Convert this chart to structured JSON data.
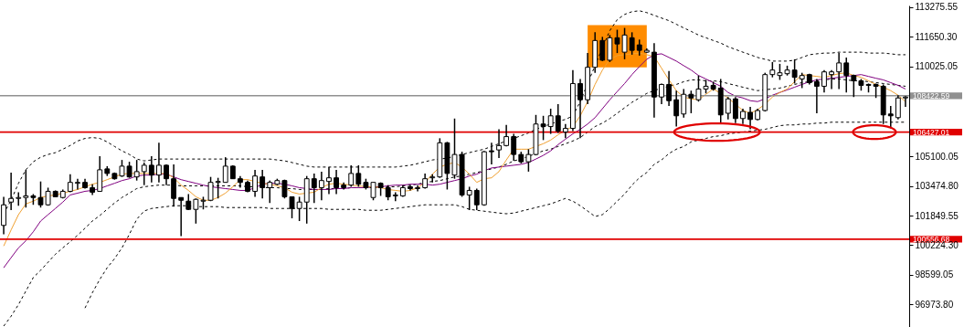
{
  "chart_data": {
    "type": "candlestick",
    "categories": [
      null,
      null,
      null,
      null,
      null,
      null,
      null,
      null,
      null,
      null,
      null,
      null,
      null,
      null,
      null,
      null,
      null,
      null,
      null,
      null,
      null,
      null,
      null,
      null,
      null,
      null,
      null,
      null,
      null,
      null,
      null,
      null,
      null,
      null,
      null,
      null,
      null,
      null,
      null,
      null,
      null,
      null,
      null,
      null,
      null,
      null,
      null,
      null,
      null,
      null,
      null,
      null,
      null,
      null,
      null,
      null,
      null,
      null,
      null,
      null,
      null,
      null,
      null,
      null,
      null,
      null,
      null,
      null,
      null,
      null,
      null,
      null,
      null,
      null,
      null,
      null,
      null,
      null,
      null,
      null,
      null,
      null,
      null,
      null,
      null,
      null,
      null,
      null,
      null,
      null,
      null,
      null,
      null,
      null,
      null,
      null,
      null,
      null,
      null,
      null,
      null,
      null,
      null,
      null,
      null,
      null,
      null,
      null,
      null,
      null,
      null,
      null,
      null,
      null,
      null,
      null,
      null,
      null,
      null,
      null,
      null,
      null,
      null
    ],
    "ohlc": [
      [
        101310,
        102880,
        100820,
        102440
      ],
      [
        102590,
        104210,
        102150,
        102790
      ],
      [
        102790,
        103130,
        102390,
        102840
      ],
      [
        102840,
        104360,
        102290,
        102930
      ],
      [
        102930,
        103030,
        102440,
        102840
      ],
      [
        102840,
        103720,
        102290,
        102440
      ],
      [
        102440,
        103380,
        102390,
        103180
      ],
      [
        103180,
        103230,
        102880,
        102880
      ],
      [
        102840,
        103280,
        102790,
        103180
      ],
      [
        103180,
        104120,
        103130,
        103670
      ],
      [
        103620,
        103870,
        103280,
        103670
      ],
      [
        103670,
        103870,
        103330,
        103380
      ],
      [
        103380,
        103570,
        102980,
        103130
      ],
      [
        103180,
        105100,
        103180,
        104360
      ],
      [
        104410,
        104560,
        104020,
        104160
      ],
      [
        104160,
        104210,
        103820,
        103870
      ],
      [
        104020,
        104900,
        103970,
        104560
      ],
      [
        104560,
        104800,
        103920,
        103970
      ],
      [
        103970,
        104900,
        103770,
        104260
      ],
      [
        104260,
        104760,
        103520,
        104610
      ],
      [
        104610,
        105100,
        103670,
        104070
      ],
      [
        104070,
        105840,
        103670,
        104610
      ],
      [
        104610,
        104660,
        103520,
        103870
      ],
      [
        103870,
        104660,
        102340,
        102790
      ],
      [
        102840,
        102840,
        100720,
        102690
      ],
      [
        102640,
        103030,
        102150,
        102190
      ],
      [
        102190,
        102790,
        101410,
        102740
      ],
      [
        102640,
        102880,
        102190,
        102690
      ],
      [
        102690,
        103970,
        102640,
        103670
      ],
      [
        103670,
        103920,
        102790,
        103720
      ],
      [
        103670,
        105050,
        103670,
        104560
      ],
      [
        104560,
        104610,
        103870,
        103870
      ],
      [
        103870,
        104020,
        103380,
        103670
      ],
      [
        103670,
        103770,
        103130,
        103180
      ],
      [
        103180,
        104360,
        102880,
        104020
      ],
      [
        103970,
        104360,
        102790,
        103380
      ],
      [
        103380,
        103770,
        102540,
        103670
      ],
      [
        103570,
        103870,
        103520,
        103770
      ],
      [
        103770,
        103820,
        102790,
        102880
      ],
      [
        102880,
        102880,
        101700,
        102240
      ],
      [
        102240,
        102880,
        101550,
        102590
      ],
      [
        102590,
        104020,
        101410,
        103870
      ],
      [
        103870,
        104160,
        102540,
        103380
      ],
      [
        103380,
        104260,
        102690,
        103770
      ],
      [
        103720,
        104510,
        103030,
        103920
      ],
      [
        103920,
        104360,
        103030,
        103380
      ],
      [
        103520,
        103670,
        103280,
        103380
      ],
      [
        103520,
        104610,
        103430,
        104160
      ],
      [
        104160,
        104610,
        103430,
        103570
      ],
      [
        103670,
        103870,
        103280,
        103380
      ],
      [
        102840,
        103670,
        102690,
        103670
      ],
      [
        103620,
        103670,
        102930,
        103380
      ],
      [
        103380,
        103520,
        102690,
        102880
      ],
      [
        102930,
        103130,
        102640,
        102980
      ],
      [
        102930,
        103520,
        102880,
        103380
      ],
      [
        103430,
        103520,
        103230,
        103330
      ],
      [
        103330,
        103520,
        103180,
        103380
      ],
      [
        103380,
        104160,
        103330,
        103870
      ],
      [
        103920,
        104120,
        103670,
        103970
      ],
      [
        103970,
        106090,
        103920,
        105840
      ],
      [
        105840,
        105890,
        103280,
        104160
      ],
      [
        104070,
        107170,
        103870,
        105200
      ],
      [
        105200,
        105350,
        102880,
        102980
      ],
      [
        102980,
        103430,
        102150,
        103230
      ],
      [
        103230,
        103330,
        102150,
        102440
      ],
      [
        102440,
        105400,
        102390,
        105350
      ],
      [
        105400,
        105840,
        104660,
        105350
      ],
      [
        105450,
        106580,
        105000,
        105690
      ],
      [
        105690,
        106820,
        105640,
        106180
      ],
      [
        106180,
        106330,
        104850,
        105200
      ],
      [
        105200,
        105350,
        104710,
        104800
      ],
      [
        104800,
        105490,
        104260,
        105200
      ],
      [
        105200,
        107370,
        105150,
        106870
      ],
      [
        106870,
        107320,
        105990,
        106730
      ],
      [
        106730,
        107710,
        106330,
        107320
      ],
      [
        107320,
        107960,
        106380,
        106480
      ],
      [
        106430,
        106870,
        106090,
        106630
      ],
      [
        106630,
        109830,
        106480,
        109090
      ],
      [
        109090,
        109340,
        106090,
        108200
      ],
      [
        108200,
        110760,
        107960,
        109980
      ],
      [
        109980,
        111900,
        109680,
        111450
      ],
      [
        111450,
        111650,
        110320,
        110370
      ],
      [
        110370,
        111750,
        110270,
        111600
      ],
      [
        111600,
        112040,
        110760,
        111260
      ],
      [
        110810,
        112140,
        110420,
        111750
      ],
      [
        111600,
        111900,
        110670,
        110910
      ],
      [
        111210,
        111500,
        110620,
        110910
      ],
      [
        110810,
        111010,
        110760,
        110910
      ],
      [
        110810,
        111310,
        107220,
        108350
      ],
      [
        108350,
        109090,
        107960,
        109040
      ],
      [
        109040,
        109780,
        107860,
        108150
      ],
      [
        108200,
        108700,
        106730,
        107320
      ],
      [
        107420,
        108790,
        107220,
        108500
      ],
      [
        108500,
        108700,
        107460,
        108300
      ],
      [
        108200,
        109530,
        108100,
        108790
      ],
      [
        108790,
        109290,
        108550,
        108940
      ],
      [
        108990,
        109190,
        108700,
        108790
      ],
      [
        108840,
        109340,
        106870,
        107370
      ],
      [
        107460,
        108350,
        107120,
        108250
      ],
      [
        108250,
        108350,
        106920,
        107170
      ],
      [
        107170,
        107710,
        106870,
        107560
      ],
      [
        107510,
        107810,
        106580,
        107120
      ],
      [
        107120,
        107710,
        107070,
        107610
      ],
      [
        107610,
        109680,
        107560,
        109580
      ],
      [
        109580,
        110270,
        109430,
        109830
      ],
      [
        109530,
        110170,
        109290,
        109680
      ],
      [
        109630,
        110070,
        109530,
        109830
      ],
      [
        109830,
        110420,
        109090,
        109430
      ],
      [
        109340,
        109680,
        108840,
        109530
      ],
      [
        109580,
        109630,
        109040,
        109140
      ],
      [
        109190,
        109340,
        107460,
        108940
      ],
      [
        108940,
        109830,
        108600,
        109730
      ],
      [
        109580,
        109830,
        108790,
        109730
      ],
      [
        109730,
        110760,
        108790,
        110220
      ],
      [
        110220,
        110520,
        108600,
        109530
      ],
      [
        109530,
        109580,
        108350,
        109240
      ],
      [
        109240,
        109340,
        108700,
        108990
      ],
      [
        109040,
        109090,
        108600,
        108990
      ],
      [
        109040,
        109090,
        108300,
        108940
      ],
      [
        108940,
        109040,
        106870,
        107370
      ],
      [
        107420,
        107860,
        106630,
        107320
      ],
      [
        107220,
        108450,
        107120,
        108300
      ],
      [
        108300,
        108400,
        107810,
        108350
      ]
    ],
    "series": [
      {
        "type": "line",
        "color": "#000000",
        "line_style": "dashed",
        "values": [
          101950,
          102690,
          103620,
          104360,
          104800,
          105050,
          105200,
          105300,
          105490,
          105690,
          105940,
          106080,
          106130,
          106080,
          105890,
          105640,
          105400,
          105200,
          104950,
          104850,
          104900,
          104950,
          104950,
          104950,
          104950,
          104950,
          104950,
          104950,
          104950,
          104950,
          104950,
          104950,
          104950,
          104950,
          104950,
          104950,
          104950,
          104900,
          104850,
          104760,
          104660,
          104560,
          104510,
          104510,
          104510,
          104510,
          104510,
          104510,
          104510,
          104510,
          104510,
          104510,
          104510,
          104510,
          104560,
          104610,
          104700,
          104800,
          104900,
          104950,
          105000,
          105100,
          105200,
          105300,
          105400,
          105490,
          105640,
          105790,
          105940,
          106080,
          106230,
          106380,
          106580,
          106730,
          106870,
          107020,
          107120,
          107320,
          108100,
          109090,
          110070,
          111060,
          111990,
          112590,
          112880,
          113030,
          113080,
          112980,
          112830,
          112680,
          112540,
          112340,
          112140,
          111950,
          111750,
          111600,
          111450,
          111310,
          111110,
          110960,
          110810,
          110670,
          110520,
          110420,
          110320,
          110320,
          110320,
          110370,
          110520,
          110670,
          110720,
          110760,
          110760,
          110810,
          110810,
          110810,
          110810,
          110760,
          110760,
          110760,
          110720,
          110670,
          110670
        ]
      },
      {
        "type": "line",
        "color": "#000000",
        "line_style": "dashed",
        "values": [
          95790,
          96330,
          96970,
          97710,
          98450,
          98850,
          99290,
          99730,
          100080,
          100420,
          100770,
          101160,
          101550,
          101850,
          102200,
          102540,
          102840,
          103080,
          103330,
          103430,
          103480,
          103520,
          103520,
          103520,
          103480,
          103480,
          103480,
          103480,
          103480,
          103480,
          103480,
          103480,
          103480,
          103430,
          103430,
          103380,
          103380,
          103380,
          103330,
          103330,
          103280,
          103280,
          103280,
          103280,
          103330,
          103330,
          103330,
          103380,
          103380,
          103380,
          103380,
          103430,
          103430,
          103430,
          103480,
          103520,
          103570,
          103670,
          103720,
          103770,
          103870,
          103970,
          104020,
          104120,
          104210,
          104310,
          104410,
          104510,
          104660,
          104850,
          104950,
          105100,
          105250,
          105400,
          105490,
          105640,
          105790,
          105940,
          106130,
          106430,
          106730,
          106920,
          107170,
          107460,
          107760,
          108060,
          108300,
          108550,
          108700,
          108840,
          108940,
          109040,
          109190,
          109290,
          109290,
          109240,
          109240,
          109190,
          109090,
          108990,
          108890,
          108790,
          108700,
          108750,
          108790,
          108840,
          108940,
          109040,
          109140,
          109190,
          109240,
          109290,
          109340,
          109340,
          109290,
          109240,
          109240,
          109190,
          109140,
          109090,
          109040,
          108990,
          108940
        ]
      },
      {
        "type": "line",
        "color": "#000000",
        "line_style": "dashed",
        "values": [
          null,
          null,
          null,
          null,
          null,
          null,
          null,
          null,
          null,
          null,
          null,
          96780,
          97620,
          98350,
          98990,
          99490,
          100080,
          100820,
          101650,
          102100,
          102240,
          102290,
          102340,
          102390,
          102390,
          102390,
          102340,
          102340,
          102340,
          102340,
          102290,
          102290,
          102290,
          102290,
          102290,
          102290,
          102240,
          102240,
          102240,
          102240,
          102240,
          102240,
          102240,
          102240,
          102190,
          102190,
          102190,
          102190,
          102190,
          102140,
          102140,
          102140,
          102190,
          102240,
          102290,
          102340,
          102390,
          102440,
          102440,
          102440,
          102440,
          102440,
          102340,
          102190,
          102140,
          102090,
          102040,
          101990,
          101950,
          101990,
          102090,
          102190,
          102290,
          102390,
          102490,
          102640,
          102790,
          102640,
          102390,
          102100,
          101800,
          101900,
          102240,
          102640,
          103030,
          103520,
          103920,
          104210,
          104660,
          104900,
          105250,
          105490,
          105640,
          105890,
          105990,
          106080,
          106180,
          106230,
          106330,
          106380,
          106430,
          106480,
          106530,
          106580,
          106680,
          106780,
          106820,
          106820,
          106870,
          106870,
          106920,
          106920,
          106970,
          106970,
          106970,
          106970,
          106970,
          106970,
          106970,
          106970,
          106970,
          106970,
          106970
        ]
      },
      {
        "type": "line",
        "color": "#800080",
        "values": [
          98990,
          99540,
          100080,
          100470,
          100960,
          101550,
          101900,
          102240,
          102590,
          102980,
          103080,
          103180,
          103230,
          103330,
          103480,
          103620,
          103770,
          103870,
          104020,
          104070,
          104070,
          104120,
          104120,
          103970,
          103820,
          103720,
          103620,
          103520,
          103430,
          103380,
          103330,
          103280,
          103230,
          103230,
          103380,
          103570,
          103620,
          103620,
          103570,
          103480,
          103380,
          103330,
          103280,
          103280,
          103280,
          103330,
          103330,
          103380,
          103380,
          103380,
          103430,
          103430,
          103480,
          103520,
          103520,
          103570,
          103570,
          103570,
          103520,
          103570,
          103670,
          103770,
          103870,
          104020,
          104120,
          104310,
          104460,
          104510,
          104560,
          104610,
          104660,
          104760,
          104950,
          105150,
          105400,
          105740,
          106040,
          106330,
          106580,
          106870,
          107220,
          107710,
          108200,
          108650,
          109090,
          109580,
          110020,
          110420,
          110670,
          110720,
          110520,
          110320,
          110070,
          109830,
          109530,
          109340,
          109140,
          108940,
          108600,
          108400,
          108300,
          108150,
          108100,
          108250,
          108450,
          108600,
          108740,
          108890,
          109040,
          109190,
          109290,
          109340,
          109380,
          109430,
          109480,
          109530,
          109580,
          109480,
          109380,
          109290,
          109140,
          108990,
          108790
        ]
      },
      {
        "type": "line",
        "color": "#f0a030",
        "values": [
          100180,
          101060,
          101900,
          102490,
          102640,
          102840,
          102930,
          102980,
          103080,
          103180,
          103280,
          103430,
          103570,
          103670,
          103820,
          103970,
          104120,
          104160,
          104160,
          104160,
          104160,
          104160,
          104160,
          103920,
          103520,
          103230,
          102880,
          102690,
          102690,
          102840,
          103080,
          103430,
          103820,
          103820,
          103720,
          103620,
          103570,
          103480,
          103380,
          103130,
          103030,
          103080,
          103130,
          103380,
          103570,
          103620,
          103570,
          103520,
          103480,
          103430,
          103430,
          103380,
          103280,
          103230,
          103180,
          103230,
          103380,
          103670,
          104120,
          104510,
          104660,
          104760,
          104510,
          104120,
          103670,
          103870,
          103920,
          104260,
          104900,
          105490,
          105490,
          105490,
          105640,
          105790,
          105990,
          106280,
          106530,
          106730,
          107320,
          108100,
          109040,
          109830,
          110420,
          110620,
          110670,
          110720,
          110760,
          110670,
          110570,
          109930,
          109290,
          108700,
          108350,
          108250,
          108200,
          108500,
          108790,
          108550,
          108300,
          107960,
          107610,
          107460,
          107660,
          107960,
          108350,
          108600,
          108790,
          109190,
          109580,
          109530,
          109480,
          109430,
          109530,
          109630,
          109680,
          109530,
          109430,
          109240,
          109040,
          108890,
          108700,
          108450,
          108100
        ]
      }
    ],
    "ylim": [
      95740,
      113370
    ],
    "yticks": [
      113275.55,
      {
        "value": 111650.3,
        "label": "111650.30"
      },
      110025.05,
      105100.05,
      {
        "value": 103474.8,
        "label": "103474.80"
      },
      101849.55,
      {
        "value": 100224.3,
        "label": "100224.30"
      },
      98599.05,
      {
        "value": 96973.8,
        "label": "96973.80"
      }
    ],
    "ref_lines": [
      {
        "axis": "y",
        "value": 108422.59,
        "label": "108422.59",
        "color": "#909090"
      },
      {
        "axis": "y",
        "value": 106427.01,
        "label": "106427.01",
        "color": "#e00000"
      },
      {
        "axis": "y",
        "value": 100556.68,
        "label": "100556.68",
        "color": "#e00000"
      }
    ],
    "grid": false,
    "tick_labels": "y"
  }
}
